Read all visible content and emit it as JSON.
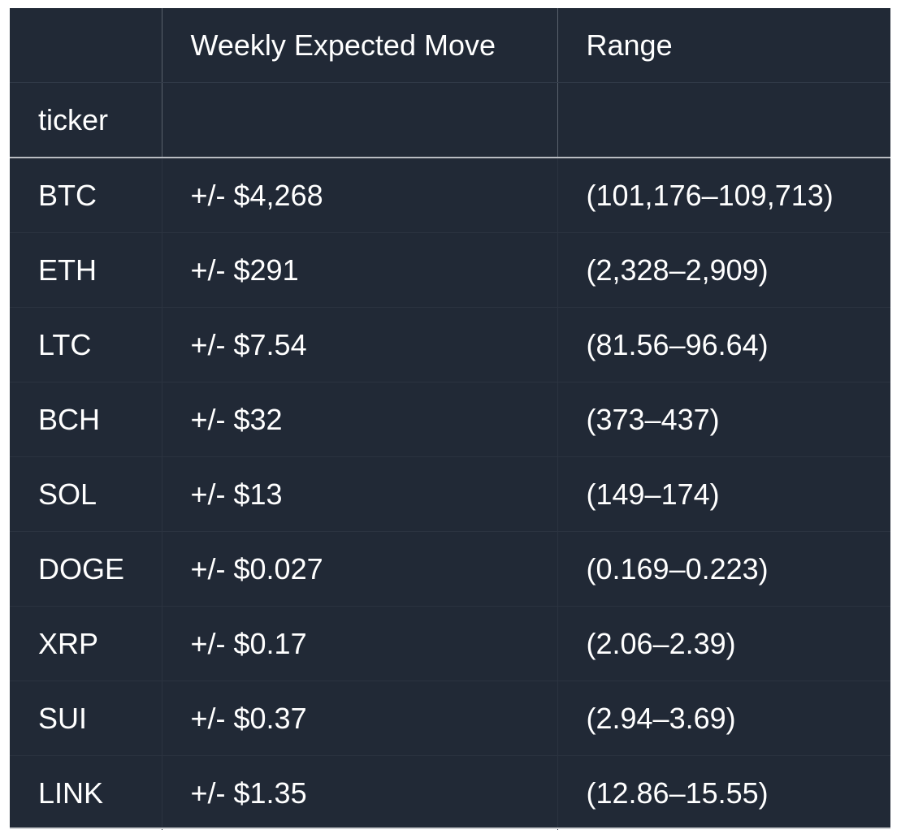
{
  "table": {
    "colors": {
      "cell_background": "#212936",
      "text": "#ffffff",
      "header_divider": "#b9bcc2",
      "grid_line": "#2b3340",
      "page_background": "#ffffff"
    },
    "header_row_1": [
      "",
      "Weekly Expected Move",
      "Range"
    ],
    "header_row_2": [
      "ticker",
      "",
      ""
    ],
    "index_name": "ticker",
    "columns": [
      "Weekly Expected Move",
      "Range"
    ],
    "rows": [
      {
        "ticker": "BTC",
        "move": "+/- $4,268",
        "range": "(101,176–109,713)"
      },
      {
        "ticker": "ETH",
        "move": "+/- $291",
        "range": "(2,328–2,909)"
      },
      {
        "ticker": "LTC",
        "move": "+/- $7.54",
        "range": "(81.56–96.64)"
      },
      {
        "ticker": "BCH",
        "move": "+/- $32",
        "range": "(373–437)"
      },
      {
        "ticker": "SOL",
        "move": "+/- $13",
        "range": "(149–174)"
      },
      {
        "ticker": "DOGE",
        "move": "+/- $0.027",
        "range": "(0.169–0.223)"
      },
      {
        "ticker": "XRP",
        "move": "+/- $0.17",
        "range": "(2.06–2.39)"
      },
      {
        "ticker": "SUI",
        "move": "+/- $0.37",
        "range": "(2.94–3.69)"
      },
      {
        "ticker": "LINK",
        "move": "+/- $1.35",
        "range": "(12.86–15.55)"
      }
    ]
  }
}
